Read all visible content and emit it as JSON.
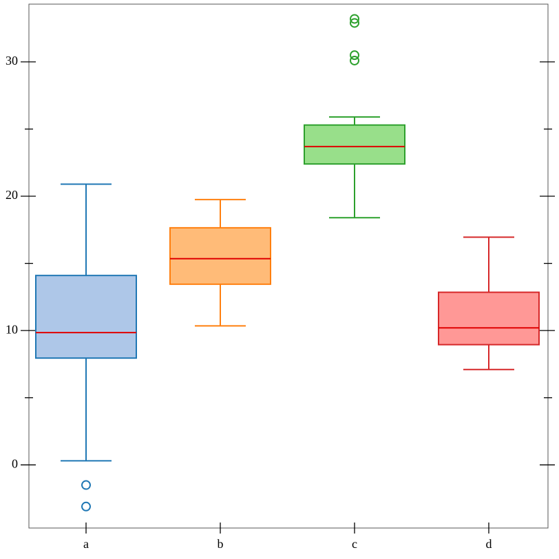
{
  "chart_data": {
    "type": "box",
    "categories": [
      "a",
      "b",
      "c",
      "d"
    ],
    "boxes": [
      {
        "low": 0.3,
        "q1": 7.95,
        "median": 9.85,
        "q3": 14.1,
        "high": 20.9,
        "outliers": [
          -1.5,
          -3.1
        ],
        "color": "#1f77b4",
        "fill": "#aec7e8"
      },
      {
        "low": 10.35,
        "q1": 13.45,
        "median": 15.35,
        "q3": 17.65,
        "high": 19.75,
        "outliers": [],
        "color": "#ff7f0e",
        "fill": "#ffbb78"
      },
      {
        "low": 18.4,
        "q1": 22.4,
        "median": 23.7,
        "q3": 25.3,
        "high": 25.9,
        "outliers": [
          33.2,
          32.9,
          30.5,
          30.1
        ],
        "color": "#2ca02c",
        "fill": "#98df8a"
      },
      {
        "low": 7.1,
        "q1": 8.95,
        "median": 10.2,
        "q3": 12.85,
        "high": 16.95,
        "outliers": [],
        "color": "#d62728",
        "fill": "#ff9896"
      }
    ],
    "median_color": "#e00000",
    "ylim": [
      -4.7,
      34.3
    ],
    "yticks": [
      0,
      10,
      20,
      30
    ],
    "yticks_minor": [
      5,
      15,
      25
    ]
  }
}
